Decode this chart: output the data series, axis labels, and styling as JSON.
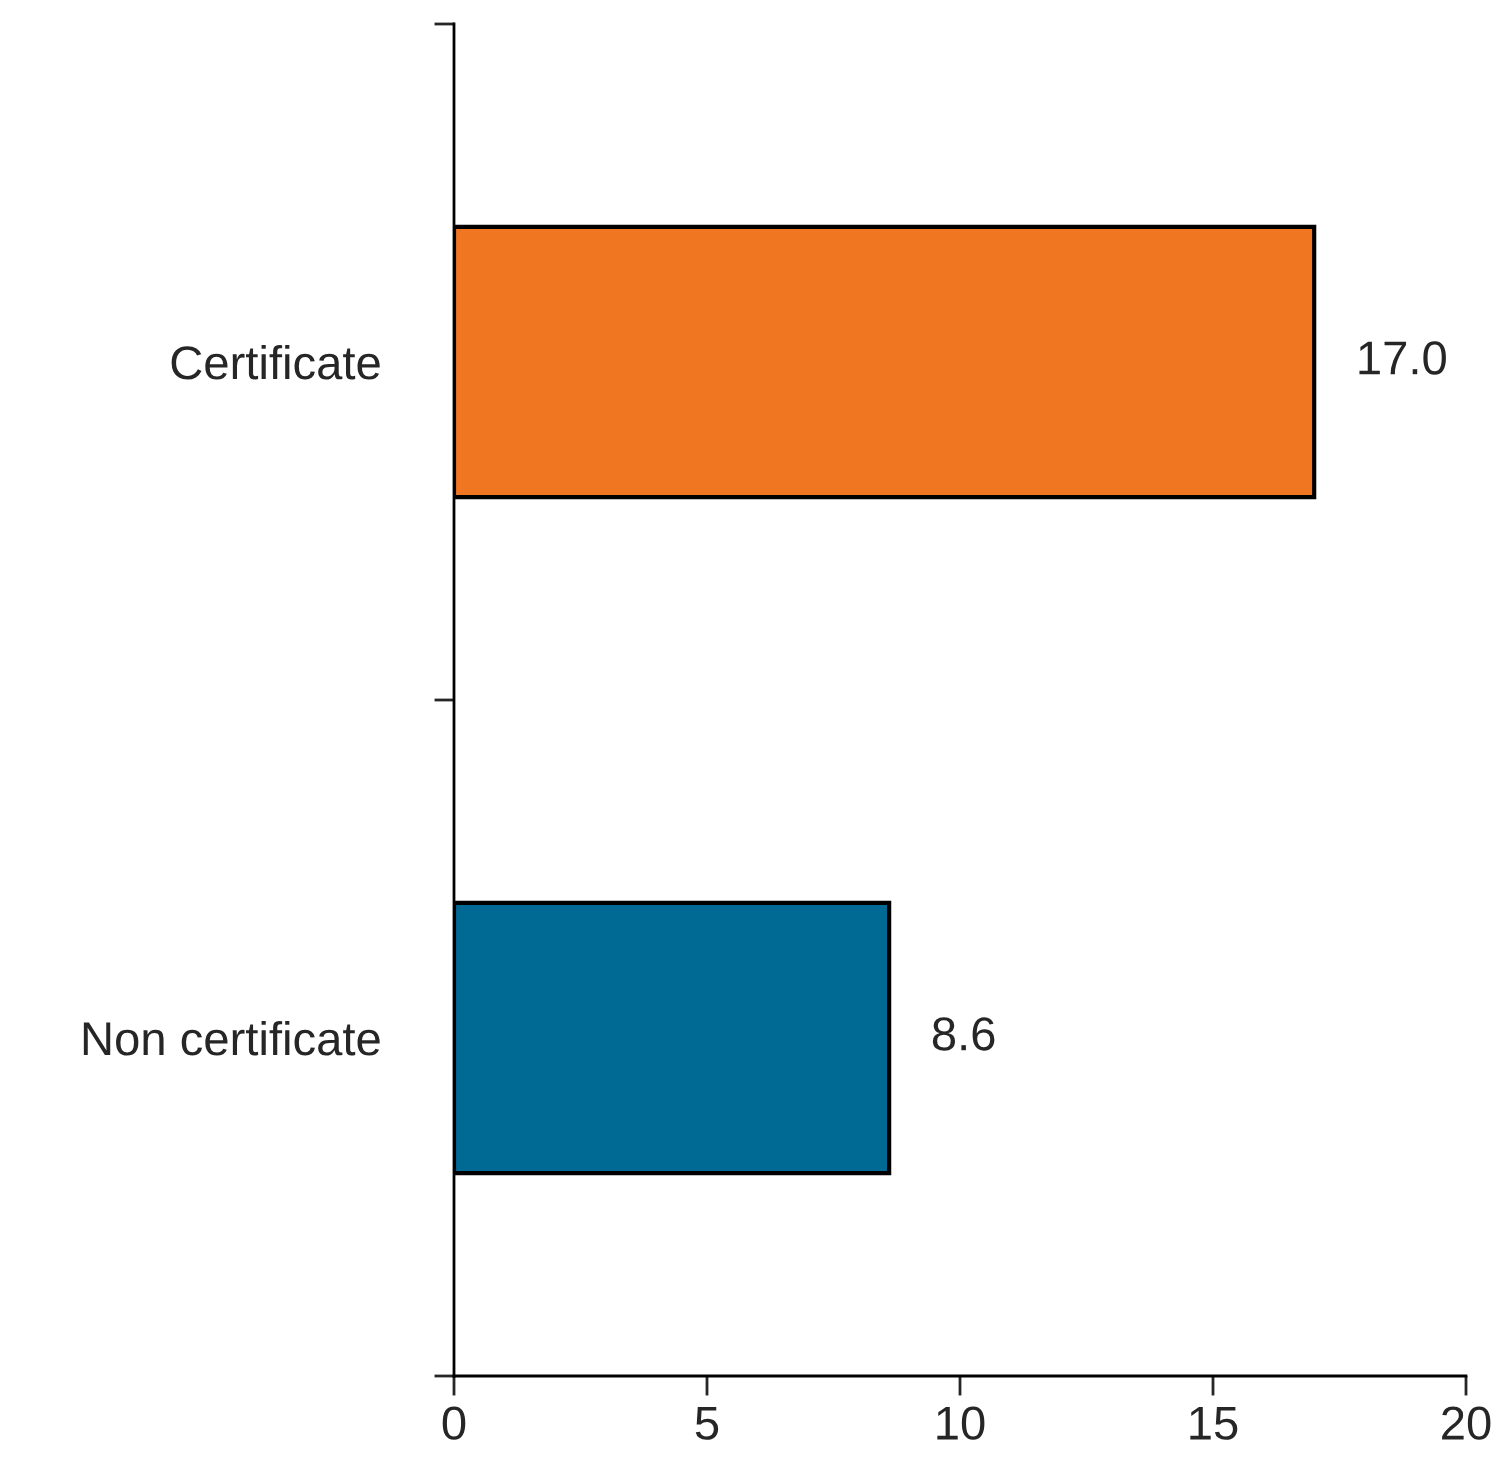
{
  "chart_data": {
    "type": "bar",
    "orientation": "horizontal",
    "categories": [
      "Certificate",
      "Non certificate"
    ],
    "values": [
      17.0,
      8.6
    ],
    "colors": [
      "#f07622",
      "#006994"
    ],
    "value_labels": [
      "17.0",
      "8.6"
    ],
    "xlim": [
      0,
      20
    ],
    "xticks": [
      0,
      5,
      10,
      15,
      20
    ],
    "grid": false,
    "legend": false
  }
}
